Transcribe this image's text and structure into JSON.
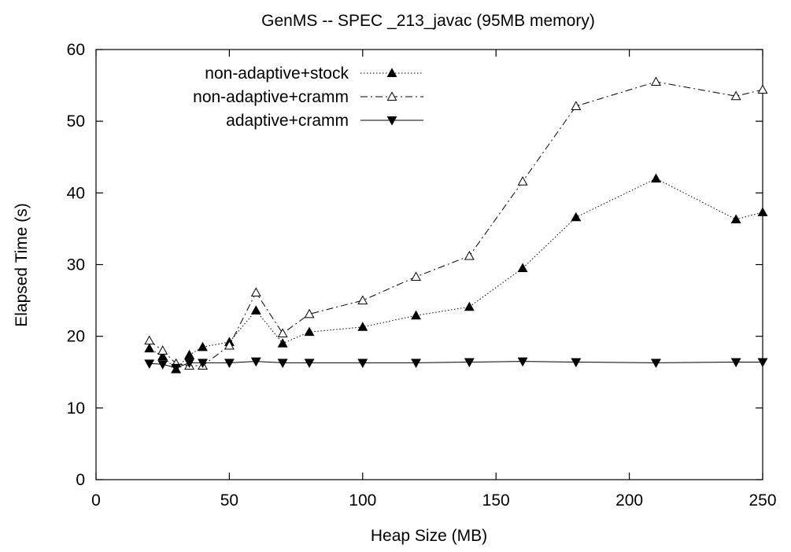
{
  "chart_data": {
    "type": "line",
    "title": "GenMS -- SPEC _213_javac (95MB memory)",
    "xlabel": "Heap Size (MB)",
    "ylabel": "Elapsed Time (s)",
    "xlim": [
      0,
      250
    ],
    "ylim": [
      0,
      60
    ],
    "x_ticks": [
      0,
      50,
      100,
      150,
      200,
      250
    ],
    "y_ticks": [
      0,
      10,
      20,
      30,
      40,
      50,
      60
    ],
    "grid": false,
    "legend_position": "top-left",
    "series": [
      {
        "name": "non-adaptive+stock",
        "marker": "filled-triangle-up",
        "line_style": "dotted",
        "x": [
          20,
          25,
          30,
          35,
          40,
          50,
          60,
          70,
          80,
          100,
          120,
          140,
          160,
          180,
          210,
          240,
          250
        ],
        "y": [
          18.3,
          17.2,
          15.4,
          17.4,
          18.5,
          19.2,
          23.6,
          19.0,
          20.6,
          21.3,
          22.9,
          24.1,
          29.5,
          36.6,
          42.0,
          36.3,
          37.3
        ]
      },
      {
        "name": "non-adaptive+cramm",
        "marker": "open-triangle-up",
        "line_style": "dash-dot",
        "x": [
          20,
          25,
          30,
          35,
          40,
          50,
          60,
          70,
          80,
          100,
          120,
          140,
          160,
          180,
          210,
          240,
          250
        ],
        "y": [
          19.4,
          18.0,
          16.2,
          15.9,
          15.9,
          18.7,
          26.1,
          20.4,
          23.1,
          25.0,
          28.3,
          31.2,
          41.6,
          52.1,
          55.5,
          53.5,
          54.4
        ]
      },
      {
        "name": "adaptive+cramm",
        "marker": "filled-triangle-down",
        "line_style": "solid",
        "x": [
          20,
          25,
          30,
          35,
          40,
          50,
          60,
          70,
          80,
          100,
          120,
          140,
          160,
          180,
          210,
          240,
          250
        ],
        "y": [
          16.2,
          16.1,
          15.6,
          16.3,
          16.3,
          16.3,
          16.5,
          16.3,
          16.3,
          16.3,
          16.3,
          16.4,
          16.5,
          16.4,
          16.3,
          16.4,
          16.4
        ]
      }
    ]
  }
}
